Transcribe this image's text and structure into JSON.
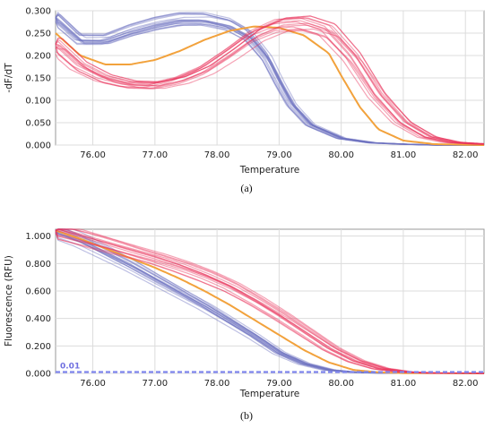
{
  "colors": {
    "blue": "#6f73c0",
    "red": "#e8325a",
    "orange": "#f2a23c",
    "threshold": "#7f86ee",
    "grid": "#dcdcdc",
    "frame": "#9a9a9a"
  },
  "chart_data": [
    {
      "type": "line",
      "caption": "(a)",
      "xlabel": "Temperature",
      "ylabel": "-dF/dT",
      "xlim": [
        75.4,
        82.3
      ],
      "ylim": [
        0,
        0.3
      ],
      "xticks": [
        "76.00",
        "77.00",
        "78.00",
        "79.00",
        "80.00",
        "81.00",
        "82.00"
      ],
      "yticks": [
        "0.000",
        "0.050",
        "0.100",
        "0.150",
        "0.200",
        "0.250",
        "0.300"
      ],
      "grid": true,
      "series": [
        {
          "group": "blue",
          "x": [
            75.4,
            75.8,
            76.2,
            76.6,
            77.0,
            77.4,
            77.8,
            78.2,
            78.5,
            78.8,
            79.0,
            79.2,
            79.5,
            80.0,
            80.5,
            81.0,
            81.5,
            82.0,
            82.3
          ],
          "values": [
            0.285,
            0.235,
            0.235,
            0.255,
            0.27,
            0.28,
            0.28,
            0.268,
            0.245,
            0.195,
            0.14,
            0.09,
            0.045,
            0.015,
            0.005,
            0.002,
            0.0,
            0.0,
            0.0
          ]
        },
        {
          "group": "orange",
          "x": [
            75.4,
            75.8,
            76.2,
            76.6,
            77.0,
            77.4,
            77.8,
            78.2,
            78.6,
            79.0,
            79.4,
            79.8,
            80.0,
            80.3,
            80.6,
            81.0,
            81.5,
            82.3
          ],
          "values": [
            0.25,
            0.2,
            0.18,
            0.18,
            0.19,
            0.21,
            0.235,
            0.255,
            0.265,
            0.262,
            0.245,
            0.205,
            0.155,
            0.085,
            0.035,
            0.01,
            0.002,
            0.0
          ]
        },
        {
          "group": "red",
          "x": [
            75.4,
            75.8,
            76.2,
            76.6,
            77.0,
            77.4,
            77.8,
            78.2,
            78.6,
            79.0,
            79.4,
            79.8,
            80.2,
            80.6,
            81.0,
            81.4,
            81.8,
            82.3
          ],
          "values": [
            0.225,
            0.175,
            0.148,
            0.135,
            0.133,
            0.145,
            0.168,
            0.205,
            0.245,
            0.268,
            0.272,
            0.255,
            0.195,
            0.11,
            0.05,
            0.018,
            0.006,
            0.002
          ]
        }
      ]
    },
    {
      "type": "line",
      "caption": "(b)",
      "xlabel": "Temperature",
      "ylabel": "Fluorescence (RFU)",
      "xlim": [
        75.4,
        82.3
      ],
      "ylim": [
        0,
        1.05
      ],
      "xticks": [
        "76.00",
        "77.00",
        "78.00",
        "79.00",
        "80.00",
        "81.00",
        "82.00"
      ],
      "yticks": [
        "0.000",
        "0.200",
        "0.400",
        "0.600",
        "0.800",
        "1.000"
      ],
      "grid": true,
      "threshold": {
        "value": 0.01,
        "label": "0.01"
      },
      "series": [
        {
          "group": "blue",
          "x": [
            75.4,
            75.8,
            76.2,
            76.6,
            77.0,
            77.4,
            77.8,
            78.2,
            78.6,
            79.0,
            79.4,
            79.8,
            80.2,
            80.6,
            81.0,
            82.3
          ],
          "values": [
            1.04,
            0.97,
            0.88,
            0.79,
            0.69,
            0.59,
            0.49,
            0.38,
            0.27,
            0.15,
            0.07,
            0.025,
            0.008,
            0.003,
            0.001,
            0.0
          ]
        },
        {
          "group": "orange",
          "x": [
            75.4,
            75.8,
            76.2,
            76.6,
            77.0,
            77.4,
            77.8,
            78.2,
            78.6,
            79.0,
            79.4,
            79.8,
            80.2,
            80.6,
            81.0,
            82.3
          ],
          "values": [
            1.04,
            0.98,
            0.91,
            0.84,
            0.77,
            0.69,
            0.6,
            0.5,
            0.39,
            0.28,
            0.17,
            0.08,
            0.025,
            0.008,
            0.002,
            0.0
          ]
        },
        {
          "group": "red",
          "x": [
            75.4,
            75.8,
            76.2,
            76.6,
            77.0,
            77.4,
            77.8,
            78.2,
            78.6,
            79.0,
            79.4,
            79.8,
            80.2,
            80.6,
            81.0,
            81.4,
            82.3
          ],
          "values": [
            1.04,
            0.99,
            0.94,
            0.89,
            0.84,
            0.78,
            0.71,
            0.63,
            0.53,
            0.42,
            0.3,
            0.18,
            0.09,
            0.035,
            0.01,
            0.003,
            0.0
          ]
        }
      ]
    }
  ]
}
